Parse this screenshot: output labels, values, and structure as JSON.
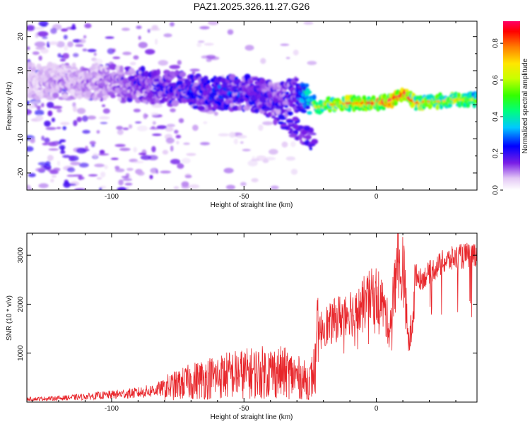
{
  "title": "PAZ1.2025.326.11.27.G26",
  "chart_data": [
    {
      "type": "heatmap",
      "title": "PAZ1.2025.326.11.27.G26",
      "xlabel": "Height of straight line (km)",
      "ylabel": "Frequency (Hz)",
      "xlim": [
        -132,
        38
      ],
      "ylim": [
        -25,
        24.5
      ],
      "xticks": [
        -100,
        -50,
        0
      ],
      "yticks": [
        -20,
        -10,
        0,
        10,
        20
      ],
      "colorbar": {
        "label": "Normalized spectral amplitude",
        "range": [
          0,
          0.92
        ],
        "ticks": [
          0.0,
          0.2,
          0.4,
          0.6,
          0.8
        ]
      },
      "ridge": {
        "x": [
          -132,
          -100,
          -90,
          -80,
          -70,
          -60,
          -50,
          -40,
          -35,
          -30,
          -25,
          -22,
          -20,
          -15,
          -10,
          -5,
          0,
          5,
          10,
          12,
          15,
          20,
          25,
          30,
          38
        ],
        "frequency": [
          7,
          6.5,
          6,
          5,
          4,
          3.5,
          3.5,
          2.5,
          1.5,
          3,
          2,
          -1,
          0,
          0,
          0.5,
          0.5,
          0.5,
          1,
          3,
          2.5,
          0.5,
          1,
          1,
          1.5,
          1.5
        ],
        "amplitude": [
          0.08,
          0.12,
          0.18,
          0.2,
          0.22,
          0.24,
          0.22,
          0.2,
          0.18,
          0.22,
          0.4,
          0.55,
          0.62,
          0.65,
          0.7,
          0.72,
          0.75,
          0.8,
          0.9,
          0.82,
          0.7,
          0.65,
          0.6,
          0.6,
          0.55
        ]
      }
    },
    {
      "type": "line",
      "xlabel": "Height of straight line (km)",
      "ylabel": "SNR (10 * v/v)",
      "xlim": [
        -132,
        38
      ],
      "ylim": [
        0,
        3450
      ],
      "xticks": [
        -100,
        -50,
        0
      ],
      "yticks": [
        1000,
        2000,
        3000
      ],
      "color": "#e8262b",
      "series": [
        {
          "name": "SNR",
          "x": [
            -132,
            -120,
            -110,
            -100,
            -95,
            -90,
            -85,
            -80,
            -75,
            -70,
            -65,
            -60,
            -55,
            -50,
            -45,
            -40,
            -35,
            -30,
            -28,
            -25,
            -23,
            -22,
            -20,
            -18,
            -15,
            -12,
            -10,
            -8,
            -5,
            -3,
            0,
            2,
            5,
            7,
            8,
            9,
            10,
            11,
            12,
            13,
            15,
            17,
            20,
            25,
            30,
            35,
            38
          ],
          "y": [
            60,
            80,
            110,
            150,
            170,
            190,
            230,
            290,
            350,
            420,
            480,
            520,
            560,
            580,
            600,
            620,
            600,
            520,
            460,
            430,
            700,
            1300,
            1600,
            1550,
            1700,
            1800,
            1900,
            1750,
            2000,
            2100,
            2200,
            2050,
            1500,
            2400,
            3300,
            2300,
            2900,
            2100,
            1200,
            1400,
            2600,
            2500,
            2650,
            2850,
            2950,
            3000,
            3050
          ]
        }
      ]
    }
  ]
}
